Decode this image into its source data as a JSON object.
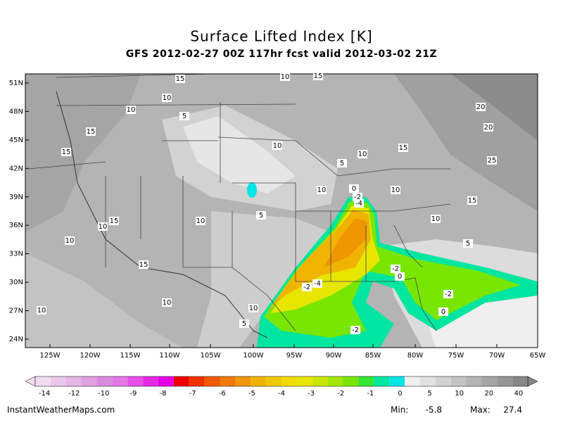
{
  "header": {
    "title": "Surface Lifted Index [K]",
    "subtitle": "GFS 2012-02-27 00Z 117hr fcst valid 2012-03-02 21Z"
  },
  "map": {
    "lon_ticks": [
      "125W",
      "120W",
      "115W",
      "110W",
      "105W",
      "100W",
      "95W",
      "90W",
      "85W",
      "80W",
      "75W",
      "70W",
      "65W"
    ],
    "lat_ticks": [
      "51N",
      "48N",
      "45N",
      "42N",
      "39N",
      "36N",
      "33N",
      "30N",
      "27N",
      "24N"
    ],
    "contour_labels": [
      15,
      10,
      15,
      10,
      10,
      5,
      20,
      15,
      20,
      15,
      10,
      10,
      15,
      5,
      25,
      10,
      0,
      10,
      -2,
      -4,
      15,
      5,
      10,
      10,
      15,
      10,
      10,
      5,
      15,
      -2,
      0,
      -2,
      -4,
      -2,
      10,
      10,
      0,
      10,
      5,
      -2
    ]
  },
  "colorbar": {
    "labels": [
      -14,
      -12,
      -10,
      -9,
      -8,
      -7,
      -6,
      -5,
      -4,
      -3,
      -2,
      -1,
      0,
      5,
      10,
      20,
      40
    ],
    "colors": [
      "#f0dcf0",
      "#ebc8eb",
      "#e6b4e6",
      "#e1a0e1",
      "#dc8cdc",
      "#e678e6",
      "#e650e6",
      "#e628e6",
      "#e600e6",
      "#f00000",
      "#f03200",
      "#f05a00",
      "#f07800",
      "#f09600",
      "#f0b400",
      "#f0c800",
      "#f0dc00",
      "#e6e600",
      "#c8e600",
      "#a0e600",
      "#78e600",
      "#32e632",
      "#00e6a0",
      "#00e6e6",
      "#f0f0f0",
      "#e1e1e1",
      "#d2d2d2",
      "#c3c3c3",
      "#b4b4b4",
      "#a5a5a5",
      "#969696",
      "#878787"
    ]
  },
  "footer": {
    "site": "InstantWeatherMaps.com",
    "min_label": "Min:",
    "min": -5.8,
    "max_label": "Max:",
    "max": 27.4
  }
}
